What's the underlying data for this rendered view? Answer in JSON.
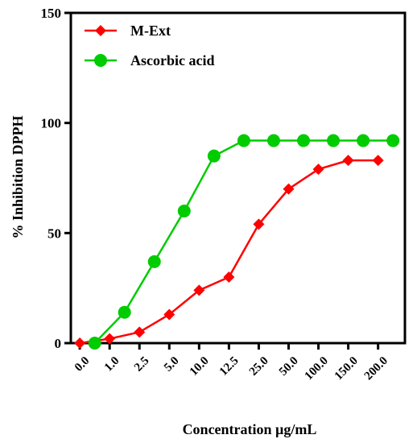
{
  "chart_data": {
    "type": "line",
    "xlabel": "Concentration  µg/mL",
    "ylabel": "% Inhibition DPPH",
    "categories": [
      "0.0",
      "1.0",
      "2.5",
      "5.0",
      "10.0",
      "12.5",
      "25.0",
      "50.0",
      "100.0",
      "150.0",
      "200.0"
    ],
    "ylim": [
      0,
      150
    ],
    "yticks": [
      0,
      50,
      100,
      150
    ],
    "grid": false,
    "legend_position": "top-left",
    "series": [
      {
        "name": "M-Ext",
        "color": "#ff0000",
        "marker": "diamond",
        "x": [
          0,
          1,
          2,
          3,
          4,
          5,
          6,
          7,
          8,
          9,
          10
        ],
        "values": [
          0,
          2,
          5,
          13,
          24,
          30,
          54,
          70,
          79,
          83,
          83
        ]
      },
      {
        "name": "Ascorbic acid",
        "color": "#00cc00",
        "marker": "circle",
        "x": [
          0.5,
          1.5,
          2.5,
          3.5,
          4.5,
          5.5,
          6.5,
          7.5,
          8.5,
          9.5,
          10.5
        ],
        "values": [
          0,
          14,
          37,
          60,
          85,
          92,
          92,
          92,
          92,
          92,
          92
        ]
      }
    ]
  }
}
